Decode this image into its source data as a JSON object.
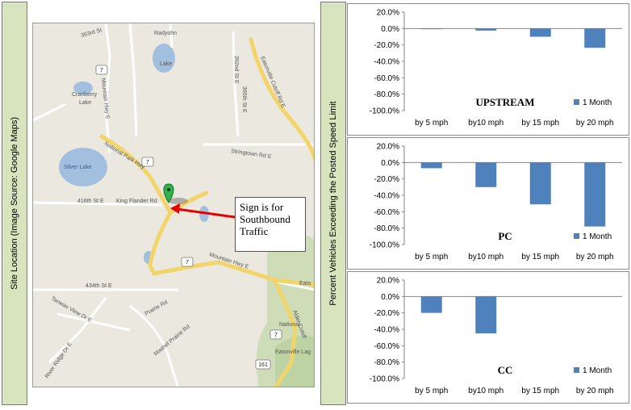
{
  "left_sidebar": {
    "label": "Site Location (Image Source: Google Maps)"
  },
  "right_sidebar": {
    "label": "Percent Vehicles Exceeding the Posted Speed Limit"
  },
  "map": {
    "callout": {
      "line1": "Sign is for",
      "line2": "Southbound",
      "line3": "Traffic"
    },
    "labels": {
      "road_363rd": "363rd St",
      "radyohn": "Radyohn",
      "lake": "Lake",
      "road_392": "392nd St E",
      "road_395": "395th St E",
      "eatonville_cutoff": "Eatonville Cutoff Rd E",
      "cranberry": "Cranberry",
      "mountain_hwy_e_top": "Mountain Hwy E",
      "national_park_hwy": "National Park Hwy",
      "stringtown": "Stringtown Rd E",
      "silver_lake": "Silver Lake",
      "road_416th": "416th St E",
      "king_flander": "King Flander Rd",
      "mountain_hwy_e": "Mountain Hwy E",
      "road_434th": "434th St E",
      "tanwax_view": "Tanwax View Dr E",
      "prairie": "Prairie Rd",
      "mashel_prairie": "Mashel Prairie Rd",
      "river_ridge": "River Ridge Dr E",
      "alder_cutoff": "Alder Cutoff",
      "national": "National",
      "eatonville_lag": "Eatonville Lag",
      "eato": "Eato",
      "route_7": "7",
      "route_161": "161"
    }
  },
  "chart_data": [
    {
      "type": "bar",
      "title": "UPSTREAM",
      "categories": [
        "by 5 mph",
        "by10 mph",
        "by 15 mph",
        "by 20 mph"
      ],
      "series": [
        {
          "name": "1 Month",
          "values": [
            -0.8,
            -2.5,
            -10.0,
            -23.5
          ]
        }
      ],
      "yticks": [
        "20.0%",
        "0.0%",
        "-20.0%",
        "-40.0%",
        "-60.0%",
        "-80.0%",
        "-100.0%"
      ],
      "ylim": [
        -100,
        20
      ],
      "color": "#4f81bd"
    },
    {
      "type": "bar",
      "title": "PC",
      "categories": [
        "by 5 mph",
        "by10 mph",
        "by 15 mph",
        "by 20 mph"
      ],
      "series": [
        {
          "name": "1 Month",
          "values": [
            -7.0,
            -30.0,
            -51.0,
            -78.0
          ]
        }
      ],
      "yticks": [
        "20.0%",
        "0.0%",
        "-20.0%",
        "-40.0%",
        "-60.0%",
        "-80.0%",
        "-100.0%"
      ],
      "ylim": [
        -100,
        20
      ],
      "color": "#4f81bd"
    },
    {
      "type": "bar",
      "title": "CC",
      "categories": [
        "by 5 mph",
        "by10 mph",
        "by 15 mph",
        "by 20 mph"
      ],
      "series": [
        {
          "name": "1 Month",
          "values": [
            -20.0,
            -45.0,
            0,
            0
          ]
        }
      ],
      "yticks": [
        "20.0%",
        "0.0%",
        "-20.0%",
        "-40.0%",
        "-60.0%",
        "-80.0%",
        "-100.0%"
      ],
      "ylim": [
        -100,
        20
      ],
      "color": "#4f81bd"
    }
  ]
}
